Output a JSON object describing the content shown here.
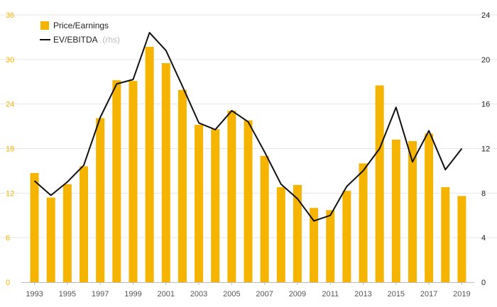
{
  "chart_data": {
    "type": "bar",
    "x": [
      1993,
      1994,
      1995,
      1996,
      1997,
      1998,
      1999,
      2000,
      2001,
      2002,
      2003,
      2004,
      2005,
      2006,
      2007,
      2008,
      2009,
      2010,
      2011,
      2012,
      2013,
      2014,
      2015,
      2016,
      2017,
      2018,
      2019
    ],
    "x_tick_labels": [
      "1993",
      "1995",
      "1997",
      "1999",
      "2001",
      "2003",
      "2005",
      "2007",
      "2009",
      "2011",
      "2013",
      "2015",
      "2017",
      "2019"
    ],
    "series": [
      {
        "name": "Price/Earnings",
        "type": "bar",
        "axis": "left",
        "color": "#F5B400",
        "values": [
          14.7,
          11.4,
          13.2,
          15.6,
          22.1,
          27.2,
          27.1,
          31.7,
          29.5,
          25.9,
          21.2,
          20.6,
          23.1,
          21.8,
          17.0,
          12.8,
          13.1,
          10.0,
          9.7,
          12.3,
          16.0,
          26.5,
          19.2,
          19.0,
          20.0,
          12.8,
          11.6
        ]
      },
      {
        "name": "EV/EBITDA",
        "name_suffix": "(rhs)",
        "type": "line",
        "axis": "right",
        "color": "#111111",
        "values": [
          9.1,
          7.8,
          9.0,
          10.5,
          14.8,
          17.8,
          18.2,
          22.4,
          20.8,
          17.6,
          14.3,
          13.7,
          15.4,
          14.4,
          11.7,
          8.8,
          7.5,
          5.5,
          6.0,
          8.6,
          10.0,
          12.0,
          15.7,
          10.8,
          13.6,
          10.1,
          12.0
        ]
      }
    ],
    "y_left": {
      "ticks": [
        "0",
        "6",
        "12",
        "18",
        "24",
        "30",
        "36"
      ],
      "range": [
        0,
        36
      ],
      "tick_color": "#F5B400"
    },
    "y_right": {
      "ticks": [
        "0",
        "4",
        "8",
        "12",
        "16",
        "20",
        "24"
      ],
      "range": [
        0,
        24
      ],
      "tick_color": "#222222"
    },
    "grid": true,
    "legend_position": "top-left"
  }
}
